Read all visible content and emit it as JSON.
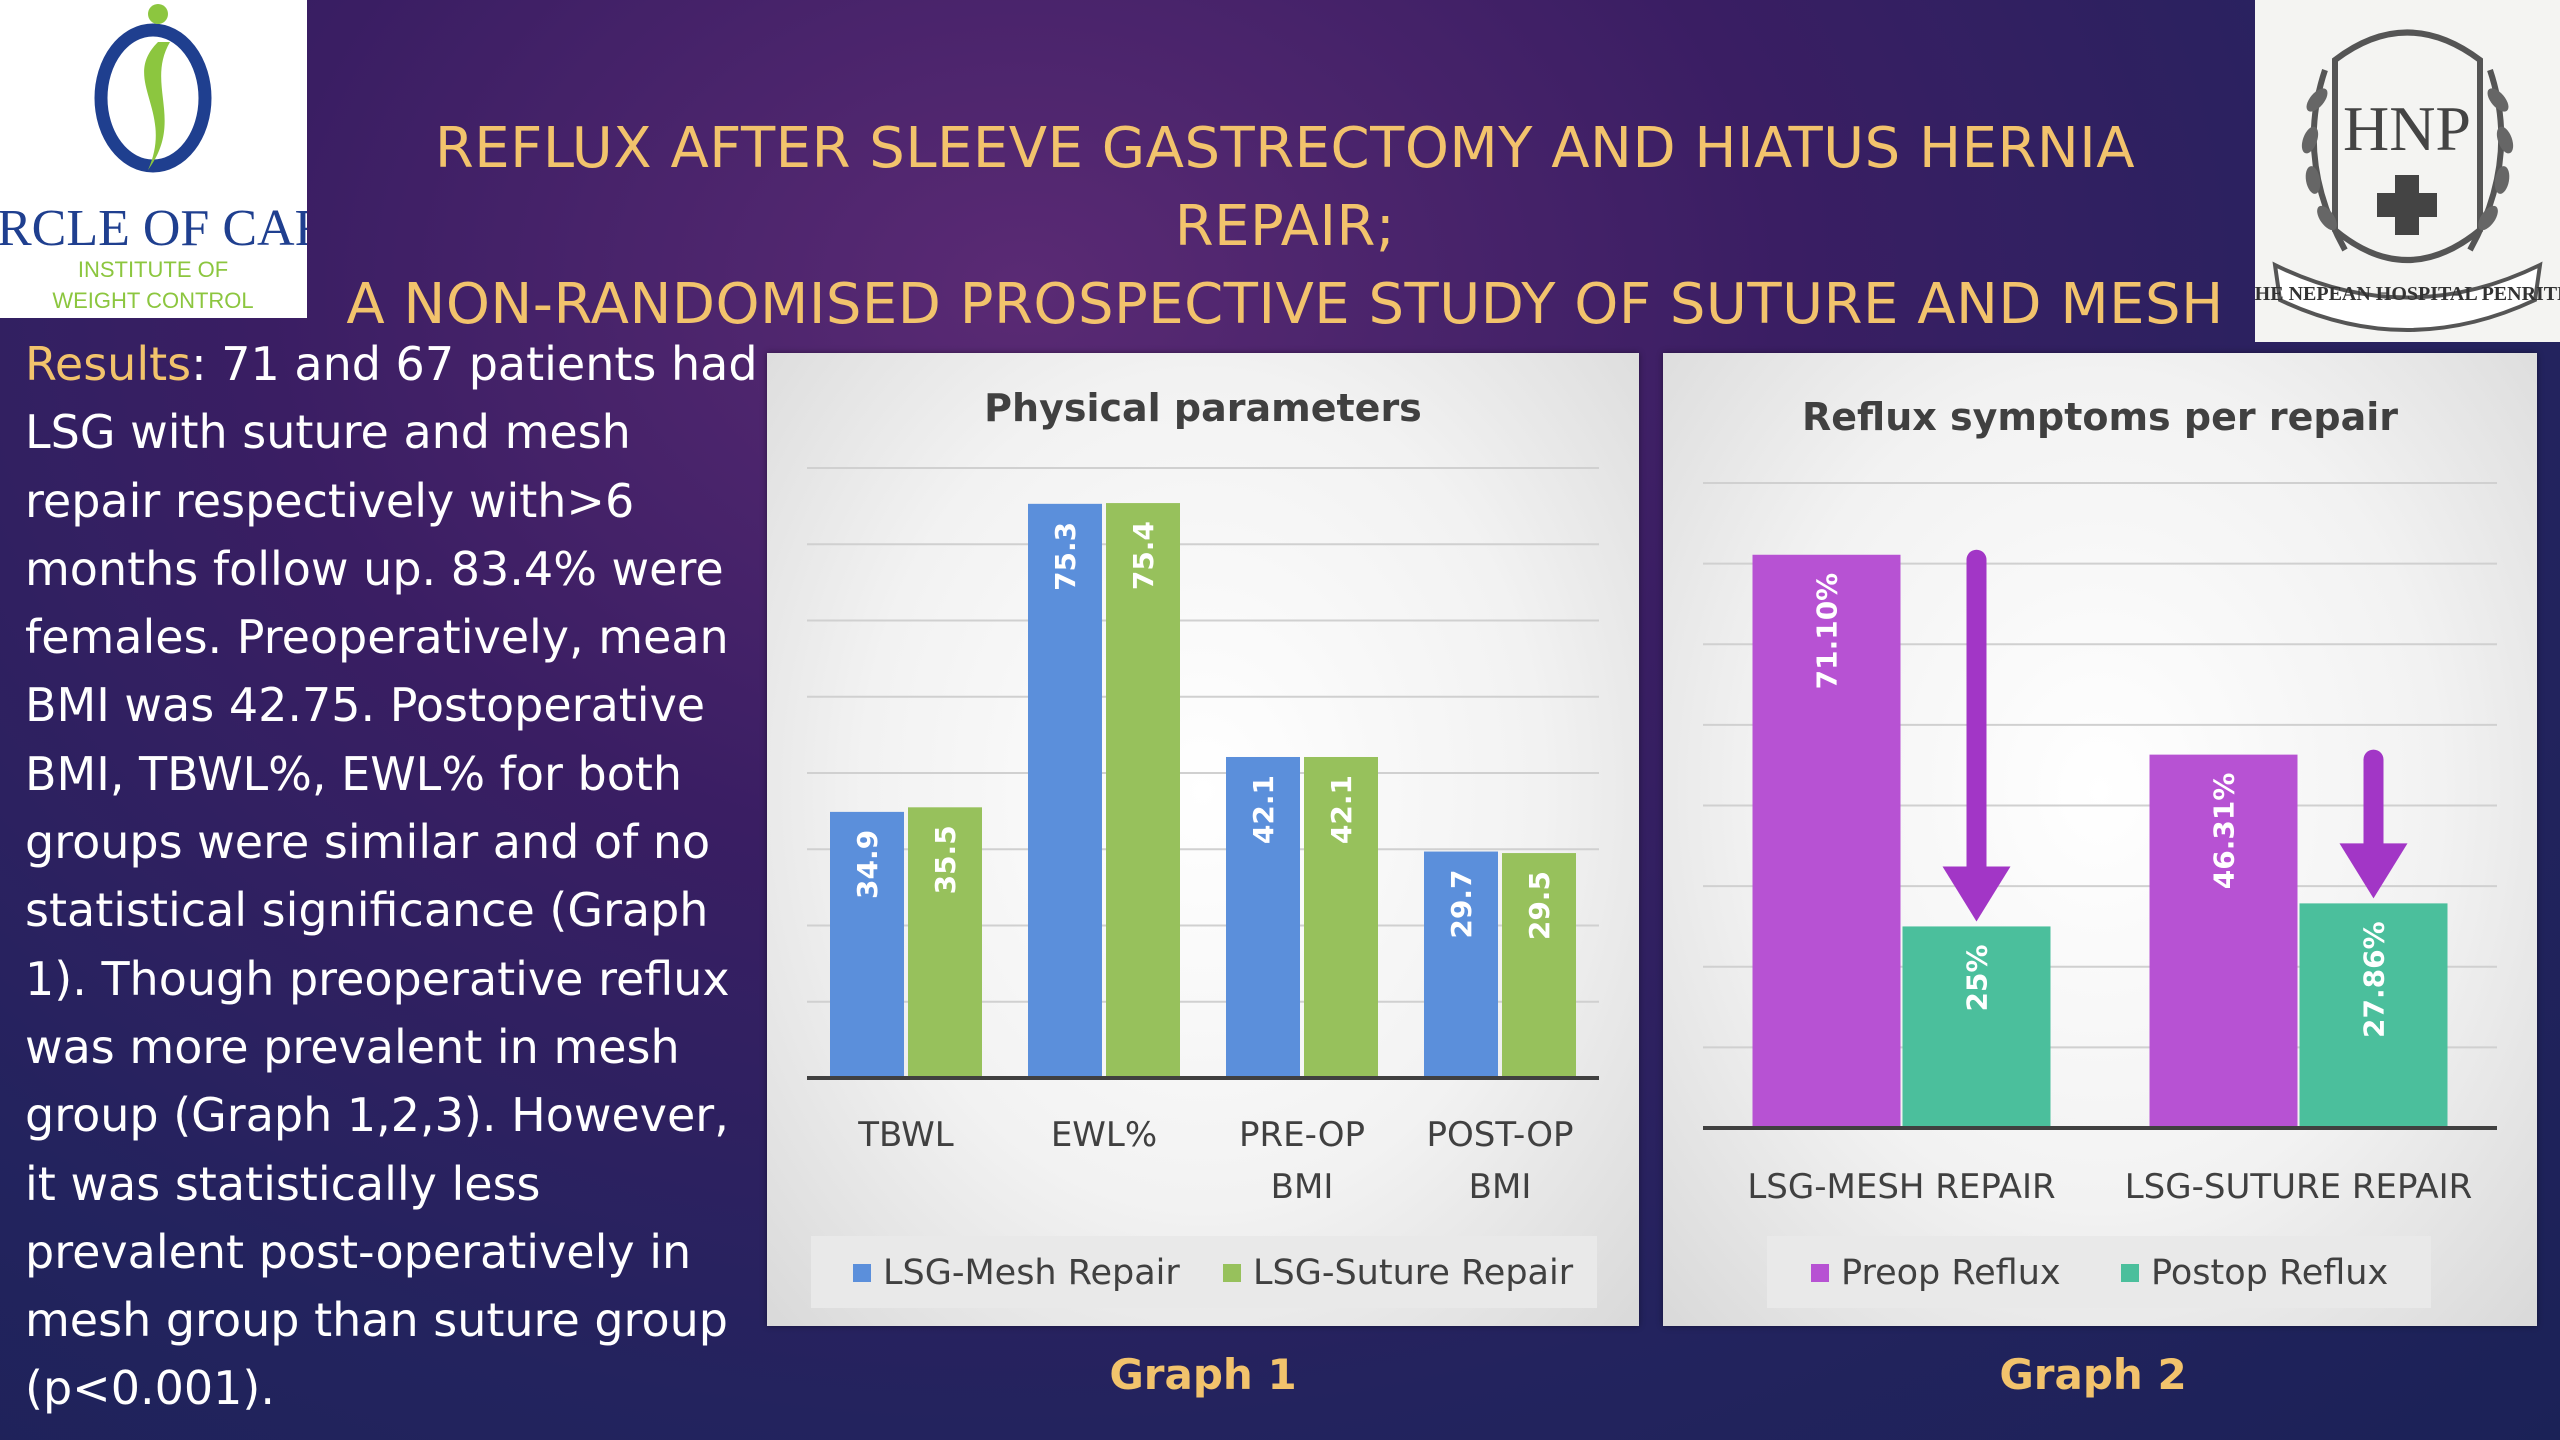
{
  "header": {
    "line1": "REFLUX AFTER SLEEVE GASTRECTOMY AND HIATUS HERNIA REPAIR;",
    "line2": "A NON-RANDOMISED PROSPECTIVE STUDY OF SUTURE AND MESH REPAIRS"
  },
  "logo_left": {
    "name": "CIRCLE OF CARE",
    "sub1": "INSTITUTE OF",
    "sub2": "WEIGHT CONTROL",
    "accent": "#1f3f8f",
    "leaf": "#8cc63f"
  },
  "logo_right": {
    "text": "THE NEPEAN HOSPITAL PENRITH",
    "initials": "HNP"
  },
  "results": {
    "lead": "Results",
    "body": ": 71 and 67 patients had LSG with suture and mesh repair respectively with>6 months follow up.  83.4% were females. Preoperatively, mean BMI was 42.75. Postoperative BMI, TBWL%, EWL% for both groups were similar and of no statistical significance (Graph 1). Though preoperative reflux was more prevalent in mesh group (Graph 1,2,3). However, it was statistically less prevalent post-operatively in mesh group than suture group (p<0.001)."
  },
  "captions": {
    "graph1": "Graph 1",
    "graph2": "Graph 2"
  },
  "chart_data": [
    {
      "type": "bar",
      "title": "Physical parameters",
      "categories": [
        [
          "TBWL"
        ],
        [
          "EWL%"
        ],
        [
          "PRE-OP",
          "BMI"
        ],
        [
          "POST-OP",
          "BMI"
        ]
      ],
      "series": [
        {
          "name": "LSG-Mesh Repair",
          "values": [
            34.9,
            75.3,
            42.1,
            29.7
          ],
          "labels": [
            "34.9",
            "75.3",
            "42.1",
            "29.7"
          ],
          "color": "#5b8fdb"
        },
        {
          "name": "LSG-Suture Repair",
          "values": [
            35.5,
            75.4,
            42.1,
            29.5
          ],
          "labels": [
            "35.5",
            "75.4",
            "42.1",
            "29.5"
          ],
          "color": "#97c15c"
        }
      ],
      "ylim": [
        0,
        80
      ],
      "gridlines": [
        10,
        20,
        30,
        40,
        50,
        60,
        70,
        80
      ],
      "legend": "bottom"
    },
    {
      "type": "bar",
      "title": "Reflux symptoms per repair",
      "categories": [
        [
          "LSG-MESH REPAIR"
        ],
        [
          "LSG-SUTURE REPAIR"
        ]
      ],
      "series": [
        {
          "name": "Preop Reflux",
          "values": [
            71.1,
            46.31
          ],
          "labels": [
            "71.10%",
            "46.31%"
          ],
          "color": "#b752d3"
        },
        {
          "name": "Postop Reflux",
          "values": [
            25,
            27.86
          ],
          "labels": [
            "25%",
            "27.86%"
          ],
          "color": "#4bbf9c"
        }
      ],
      "ylim": [
        0,
        80
      ],
      "gridlines": [
        10,
        20,
        30,
        40,
        50,
        60,
        70,
        80
      ],
      "arrows": "down",
      "arrow_color": "#a236c6",
      "legend": "bottom"
    }
  ]
}
